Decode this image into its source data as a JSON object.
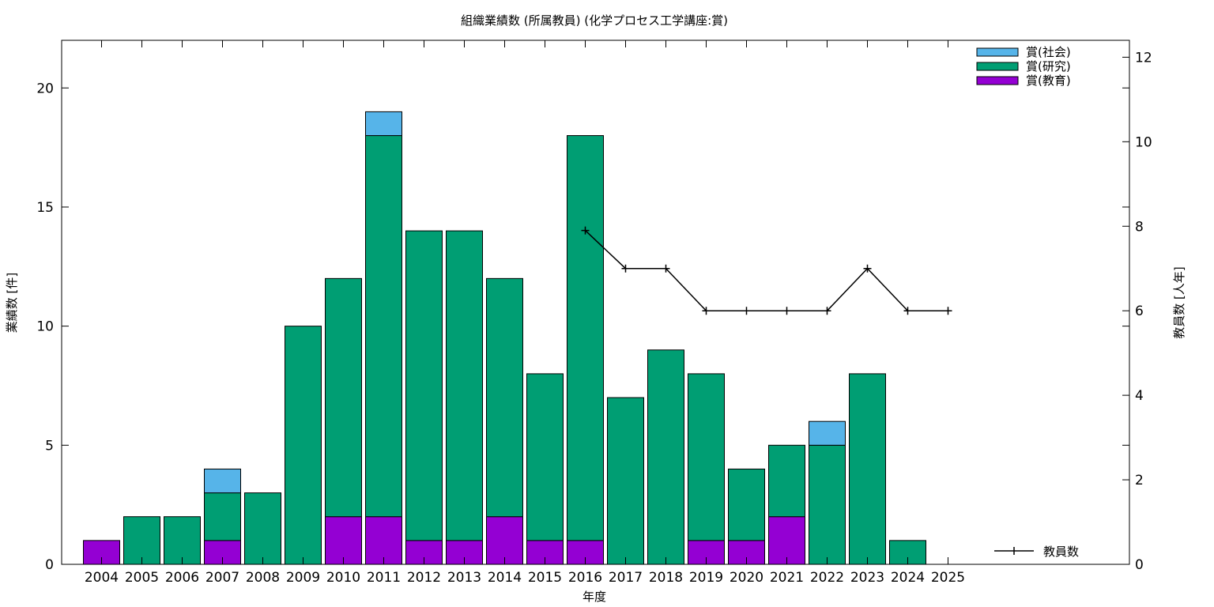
{
  "chart_data": {
    "type": "bar",
    "stacked": true,
    "title": "組織業績数 (所属教員) (化学プロセス工学講座:賞)",
    "xlabel": "年度",
    "ylabel": "業績数 [件]",
    "y2label": "教員数 [人年]",
    "ylim": [
      0,
      22
    ],
    "y2lim": [
      0,
      12.4
    ],
    "yticks": [
      "0",
      "5",
      "10",
      "15",
      "20"
    ],
    "y2ticks": [
      "0",
      "2",
      "4",
      "6",
      "8",
      "10",
      "12"
    ],
    "grid": false,
    "legend_position": "top-right",
    "categories": [
      "2004",
      "2005",
      "2006",
      "2007",
      "2008",
      "2009",
      "2010",
      "2011",
      "2012",
      "2013",
      "2014",
      "2015",
      "2016",
      "2017",
      "2018",
      "2019",
      "2020",
      "2021",
      "2022",
      "2023",
      "2024",
      "2025"
    ],
    "series": [
      {
        "name": "賞(教育)",
        "color": "#9400d3",
        "values": [
          1,
          0,
          0,
          1,
          0,
          0,
          2,
          2,
          1,
          1,
          2,
          1,
          1,
          0,
          0,
          1,
          1,
          2,
          0,
          0,
          0,
          0
        ]
      },
      {
        "name": "賞(研究)",
        "color": "#009e73",
        "values": [
          0,
          2,
          2,
          2,
          3,
          10,
          10,
          16,
          13,
          13,
          10,
          7,
          17,
          7,
          9,
          7,
          3,
          3,
          5,
          8,
          1,
          0
        ]
      },
      {
        "name": "賞(社会)",
        "color": "#56b4e9",
        "values": [
          0,
          0,
          0,
          1,
          0,
          0,
          0,
          1,
          0,
          0,
          0,
          0,
          0,
          0,
          0,
          0,
          0,
          0,
          1,
          0,
          0,
          0
        ]
      }
    ],
    "legend_order": [
      "賞(社会)",
      "賞(研究)",
      "賞(教育)"
    ],
    "line_series": {
      "name": "教員数",
      "color": "#000000",
      "axis": "y2",
      "x": [
        "2016",
        "2017",
        "2018",
        "2019",
        "2020",
        "2021",
        "2022",
        "2023",
        "2024",
        "2025"
      ],
      "values": [
        7.9,
        7,
        7,
        6,
        6,
        6,
        6,
        7,
        6,
        6
      ]
    }
  }
}
